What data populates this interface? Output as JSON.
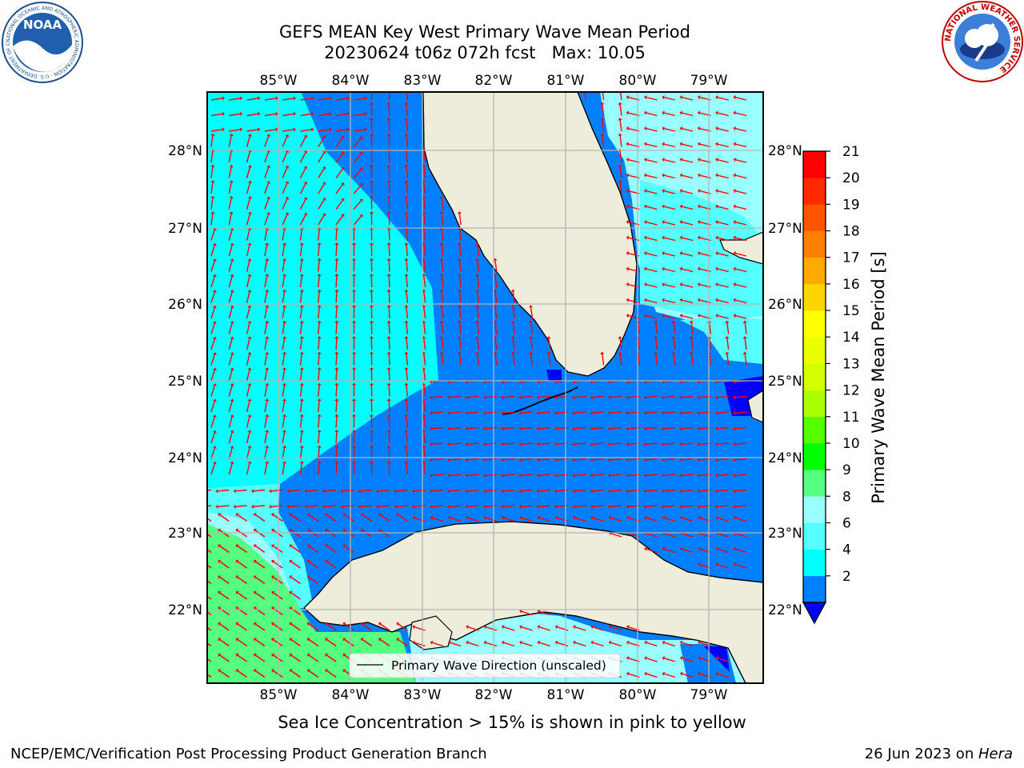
{
  "header": {
    "title_line1": "GEFS MEAN Key West Primary Wave Mean Period",
    "title_line2": "20230624 t06z 072h fcst   Max: 10.05"
  },
  "logos": {
    "left": "NOAA",
    "left_ring_text": "NATIONAL OCEANIC AND ATMOSPHERIC ADMINISTRATION · U.S. DEPARTMENT OF COMMERCE",
    "right_ring_text": "NATIONAL WEATHER SERVICE"
  },
  "map": {
    "lon_labels": [
      "85°W",
      "84°W",
      "83°W",
      "82°W",
      "81°W",
      "80°W",
      "79°W"
    ],
    "lat_labels": [
      "28°N",
      "27°N",
      "26°N",
      "25°N",
      "24°N",
      "23°N",
      "22°N"
    ],
    "legend_label": "Primary Wave Direction (unscaled)",
    "colors": {
      "land": "#eeeddc",
      "coast": "#000000",
      "grid": "#b4b4b4",
      "arrow": "#ff0000",
      "period_2_4": "#0080ff",
      "period_4_6": "#00ffff",
      "period_6_8": "#55ffff",
      "period_8_9": "#99ffff",
      "period_9_10": "#55ff80",
      "below_2": "#0000ff"
    }
  },
  "colorbar": {
    "label": "Primary Wave Mean Period [s]",
    "ticks": [
      "21",
      "20",
      "19",
      "18",
      "17",
      "16",
      "15",
      "14",
      "13",
      "12",
      "11",
      "10",
      "9",
      "8",
      "6",
      "4",
      "2"
    ],
    "colors_top_to_bottom": [
      "#ff0000",
      "#ff2a00",
      "#ff5500",
      "#ff8000",
      "#ffaa00",
      "#ffd500",
      "#ffff00",
      "#eaff00",
      "#d5ff00",
      "#aaff00",
      "#55ff00",
      "#00ff00",
      "#55ff80",
      "#99ffff",
      "#55ffff",
      "#00ffff",
      "#0080ff"
    ],
    "extend_color": "#0000ff"
  },
  "footer": {
    "ice_note": "Sea Ice Concentration > 15% is shown in pink to yellow",
    "credit": "NCEP/EMC/Verification Post Processing Product Generation Branch",
    "date": "26 Jun 2023 on ",
    "machine": "Hera"
  }
}
